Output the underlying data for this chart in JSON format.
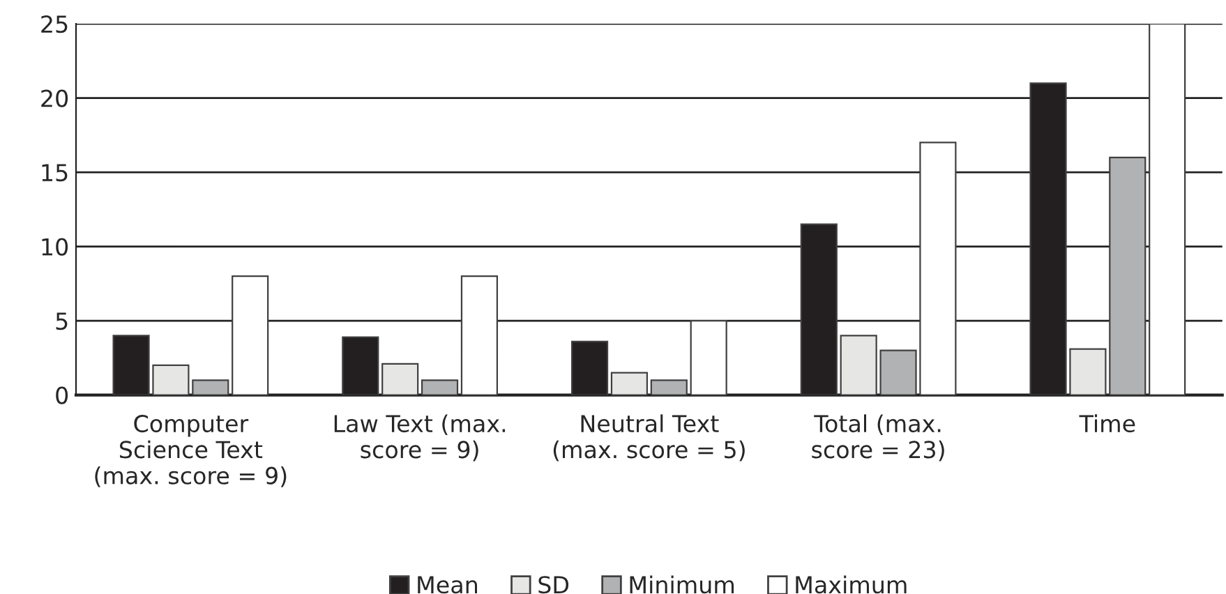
{
  "chart_data": {
    "type": "bar",
    "categories": [
      "Computer\nScience Text\n(max. score = 9)",
      "Law Text (max.\nscore = 9)",
      "Neutral Text\n(max. score = 5)",
      "Total (max.\nscore = 23)",
      "Time"
    ],
    "series": [
      {
        "name": "Mean",
        "color": "#231f20",
        "values": [
          4.0,
          3.9,
          3.6,
          11.5,
          21
        ]
      },
      {
        "name": "SD",
        "color": "#e6e6e5",
        "values": [
          2.0,
          2.1,
          1.5,
          4.0,
          3.1
        ]
      },
      {
        "name": "Minimum",
        "color": "#b1b2b4",
        "values": [
          1,
          1,
          1,
          3,
          16
        ]
      },
      {
        "name": "Maximum",
        "color": "#ffffff",
        "values": [
          8,
          8,
          5,
          17,
          25
        ]
      }
    ],
    "ylim": [
      0,
      25
    ],
    "yticks": [
      0,
      5,
      10,
      15,
      20,
      25
    ],
    "grid": "y",
    "legend": "bottom"
  }
}
